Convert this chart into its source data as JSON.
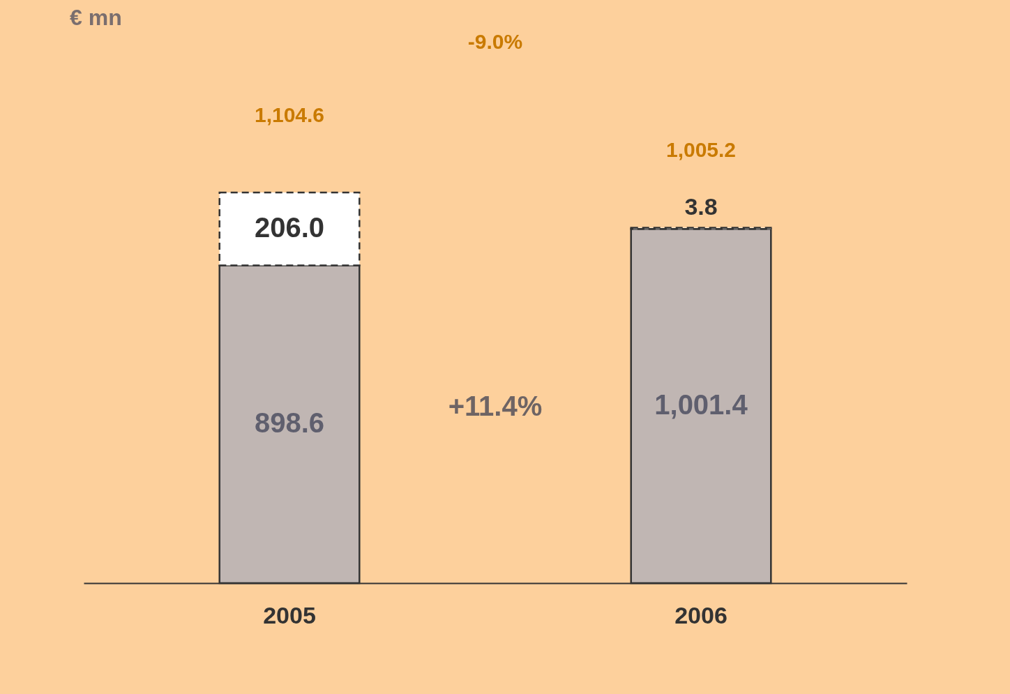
{
  "chart_data": {
    "type": "bar",
    "categories": [
      "2005",
      "2006"
    ],
    "stacked": true,
    "series": [
      {
        "color": "#c0b6b3",
        "values": [
          898.6,
          1001.4
        ],
        "value_labels": [
          "898.6",
          "1,001.4"
        ]
      },
      {
        "color": "#ffffff",
        "line_style": "dashed",
        "values": [
          206.0,
          3.8
        ],
        "value_labels": [
          "206.0",
          "3.8"
        ]
      }
    ],
    "totals": [
      "1,104.6",
      "1,005.2"
    ],
    "annotations": [
      "€ mn",
      "-9.0%",
      "+11.4%"
    ],
    "legend": false,
    "grid": false
  }
}
